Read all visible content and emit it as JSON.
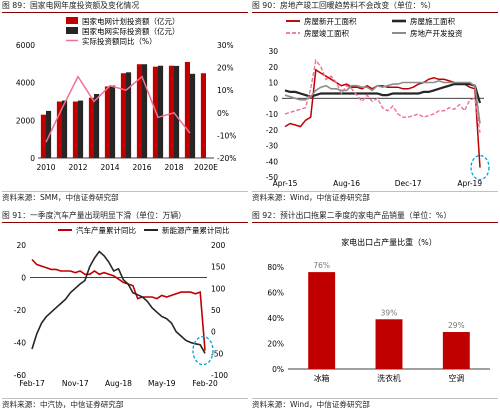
{
  "colors": {
    "red": "#c00000",
    "dark": "#262626",
    "pink": "#f07090",
    "gray": "#8c8c8c",
    "cyan": "#00a0e0",
    "axis": "#000000"
  },
  "panels": {
    "p89": {
      "title": "图 89：国家电网年度投资额及变化情况",
      "source": "资料来源：SMM，中信证券研究部"
    },
    "p90": {
      "title": "图 90：房地产竣工回暖趋势料不会改变（单位：%）",
      "source": "资料来源：Wind，中信证券研究部"
    },
    "p91": {
      "title": "图 91：一季度汽车产量出现明显下滑（单位：万辆）",
      "source": "资料来源：中汽协，中信证券研究部"
    },
    "p92": {
      "title": "图 92：预计出口拖累二季度的家电产品销量（单位：%）",
      "source": "资料来源：Wind，中信证券研究部"
    }
  },
  "chart_data": [
    {
      "id": "p89",
      "type": "bar",
      "categories": [
        "2010",
        "2011",
        "2012",
        "2013",
        "2014",
        "2015",
        "2016",
        "2017",
        "2018",
        "2019",
        "2020E"
      ],
      "xticks": [
        "2010",
        "2012",
        "2014",
        "2016",
        "2018",
        "2020E"
      ],
      "ylim": [
        0,
        6000
      ],
      "yticks": [
        "0",
        "2000",
        "4000",
        "6000"
      ],
      "y2lim": [
        -20,
        30
      ],
      "y2ticks": [
        "-20%",
        "-10%",
        "0%",
        "10%",
        "20%",
        "30%"
      ],
      "series": [
        {
          "name": "国家电网计划投资额（亿元）",
          "type": "bar",
          "values": [
            2300,
            3000,
            3000,
            3200,
            3800,
            4500,
            4980,
            4850,
            4900,
            5100,
            4500
          ]
        },
        {
          "name": "国家电网实际投资额（亿元）",
          "type": "bar",
          "values": [
            2500,
            3050,
            3050,
            3400,
            3850,
            4550,
            4980,
            4900,
            4890,
            4470,
            null
          ]
        },
        {
          "name": "实际投资额同比（%）",
          "type": "line",
          "axis": "y2",
          "values": [
            -13,
            2,
            16,
            5,
            12,
            10,
            16,
            -2,
            0,
            -9,
            null
          ]
        }
      ]
    },
    {
      "id": "p90",
      "type": "line",
      "xticks": [
        "Apr-15",
        "Aug-16",
        "Dec-17",
        "Apr-19"
      ],
      "ylim": [
        -50,
        30
      ],
      "yticks": [
        "-50",
        "-40",
        "-30",
        "-20",
        "-10",
        "0",
        "10",
        "20",
        "30"
      ],
      "series": [
        {
          "name": "房屋新开工面积",
          "style": "red-solid",
          "values": [
            -18,
            -16,
            -17,
            -18,
            -14,
            -12,
            18,
            16,
            14,
            12,
            10,
            8,
            9,
            7,
            7,
            6,
            8,
            6,
            8,
            8,
            7,
            7,
            7,
            6,
            6,
            7,
            9,
            10,
            12,
            13,
            12,
            12,
            11,
            10,
            9,
            9,
            7,
            6,
            -44
          ]
        },
        {
          "name": "房屋施工面积",
          "style": "dark-solid",
          "values": [
            5,
            4,
            4,
            3,
            2,
            1,
            2,
            3,
            3,
            3,
            3,
            3,
            3,
            3,
            3,
            3,
            3,
            3,
            3,
            2,
            2,
            3,
            3,
            3,
            3,
            3,
            3,
            4,
            4,
            5,
            6,
            7,
            8,
            9,
            9,
            9,
            9,
            8,
            -3
          ]
        },
        {
          "name": "房屋竣工面积",
          "style": "pink-dashed",
          "values": [
            -10,
            -9,
            -8,
            -7,
            -6,
            6,
            24,
            20,
            12,
            14,
            10,
            3,
            8,
            6,
            2,
            -2,
            2,
            -2,
            0,
            -6,
            -8,
            -5,
            -10,
            -12,
            -12,
            -11,
            -10,
            -12,
            -11,
            -10,
            -8,
            -8,
            -6,
            -7,
            -4,
            -8,
            -1,
            0,
            -22
          ]
        },
        {
          "name": "房地产开发投资",
          "style": "gray-solid",
          "values": [
            2,
            1,
            0,
            -1,
            -1,
            1,
            5,
            7,
            8,
            6,
            6,
            5,
            5,
            8,
            8,
            7,
            7,
            5,
            8,
            7,
            8,
            9,
            9,
            10,
            10,
            10,
            10,
            10,
            10,
            10,
            11,
            10,
            10,
            10,
            10,
            10,
            10,
            8,
            -16
          ]
        }
      ]
    },
    {
      "id": "p91",
      "type": "line",
      "xticks": [
        "Feb-17",
        "Nov-17",
        "Aug-18",
        "May-19",
        "Feb-20"
      ],
      "ylim": [
        -60,
        20
      ],
      "yticks": [
        "-60",
        "-40",
        "-20",
        "0",
        "20"
      ],
      "y2lim": [
        -100,
        200
      ],
      "y2ticks": [
        "-100",
        "-50",
        "0",
        "50",
        "100",
        "150",
        "200"
      ],
      "series": [
        {
          "name": "汽车产量累计同比",
          "color": "red",
          "values": [
            11,
            8,
            7,
            6,
            5,
            5,
            4,
            4,
            4,
            3,
            4,
            2,
            2,
            4,
            2,
            3,
            2,
            1,
            -1,
            -3,
            -4,
            -5,
            -13,
            -12,
            -12,
            -12,
            -13,
            -11,
            -12,
            -11,
            -10,
            -9,
            -9,
            -9,
            -10,
            -9,
            -45
          ]
        },
        {
          "name": "新能源产量累计同比",
          "color": "dark",
          "axis": "y2",
          "values": [
            -40,
            -5,
            20,
            35,
            45,
            55,
            65,
            75,
            90,
            100,
            110,
            118,
            150,
            170,
            185,
            175,
            160,
            140,
            145,
            120,
            110,
            90,
            85,
            80,
            70,
            55,
            45,
            35,
            30,
            20,
            0,
            -10,
            -20,
            -25,
            -28,
            -30,
            -50
          ]
        }
      ]
    },
    {
      "id": "p92",
      "type": "bar",
      "title": "家电出口占产量比重（%）",
      "categories": [
        "冰箱",
        "洗衣机",
        "空调"
      ],
      "values": [
        76,
        39,
        29
      ],
      "value_labels": [
        "76%",
        "39%",
        "29%"
      ],
      "ylim": [
        0,
        80
      ],
      "yticks": [
        "0%",
        "20%",
        "40%",
        "60%",
        "80%"
      ]
    }
  ]
}
